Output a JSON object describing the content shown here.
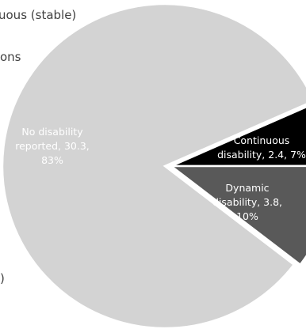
{
  "chart_data": {
    "type": "pie",
    "title": "",
    "slices": [
      {
        "label": "No disability reported",
        "value": 30.3,
        "percent": "83%",
        "color": "#d3d3d3",
        "label_color": "#ffffff",
        "label_lines": [
          "No disability",
          "reported, 30.3,",
          "83%"
        ]
      },
      {
        "label": "Continuous disability",
        "value": 2.4,
        "percent": "7%",
        "color": "#000000",
        "label_color": "#ffffff",
        "label_lines": [
          "Continuous",
          "disability, 2.4, 7%"
        ]
      },
      {
        "label": "Dynamic disability",
        "value": 3.8,
        "percent": "10%",
        "color": "#595959",
        "label_color": "#ffffff",
        "label_lines": [
          "Dynamic",
          "disability, 3.8,",
          "10%"
        ]
      }
    ],
    "explode": "Dynamic and Continuous disability slices pulled out to the right",
    "legend_fragments": [
      "uous (stable)",
      "ons",
      ")"
    ]
  }
}
